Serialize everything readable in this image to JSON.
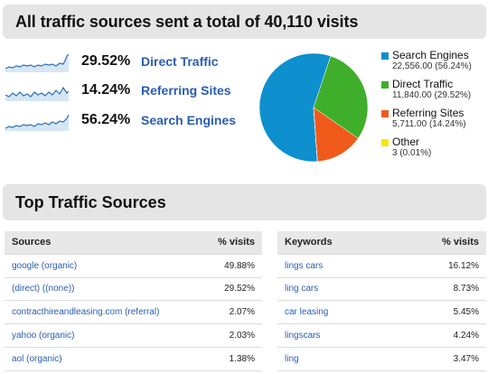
{
  "header": {
    "title": "All traffic sources sent a total of 40,110 visits"
  },
  "sources": [
    {
      "pct": "29.52%",
      "name": "Direct Traffic"
    },
    {
      "pct": "14.24%",
      "name": "Referring Sites"
    },
    {
      "pct": "56.24%",
      "name": "Search Engines"
    }
  ],
  "chart_data": {
    "type": "pie",
    "slices": [
      {
        "name": "Search Engines",
        "value": 22556.0,
        "percent": 56.24,
        "color": "#0e8fce"
      },
      {
        "name": "Direct Traffic",
        "value": 11840.0,
        "percent": 29.52,
        "color": "#3fae2a"
      },
      {
        "name": "Referring Sites",
        "value": 5711.0,
        "percent": 14.24,
        "color": "#f05a1a"
      },
      {
        "name": "Other",
        "value": 3,
        "percent": 0.01,
        "color": "#f4e60a"
      }
    ]
  },
  "legend": [
    {
      "name": "Search Engines",
      "value": "22,556.00 (56.24%)",
      "color": "#0e8fce"
    },
    {
      "name": "Direct Traffic",
      "value": "11,840.00 (29.52%)",
      "color": "#3fae2a"
    },
    {
      "name": "Referring Sites",
      "value": "5,711.00 (14.24%)",
      "color": "#f05a1a"
    },
    {
      "name": "Other",
      "value": "3 (0.01%)",
      "color": "#f4e60a"
    }
  ],
  "top_sources": {
    "title": "Top Traffic Sources",
    "sources_table": {
      "col1": "Sources",
      "col2": "% visits",
      "rows": [
        {
          "name": "google (organic)",
          "pct": "49.88%"
        },
        {
          "name": "(direct) ((none))",
          "pct": "29.52%"
        },
        {
          "name": "contracthireandleasing.com (referral)",
          "pct": "2.07%"
        },
        {
          "name": "yahoo (organic)",
          "pct": "2.03%"
        },
        {
          "name": "aol (organic)",
          "pct": "1.38%"
        }
      ]
    },
    "keywords_table": {
      "col1": "Keywords",
      "col2": "% visits",
      "rows": [
        {
          "name": "lings cars",
          "pct": "16.12%"
        },
        {
          "name": "ling cars",
          "pct": "8.73%"
        },
        {
          "name": "car leasing",
          "pct": "5.45%"
        },
        {
          "name": "lingscars",
          "pct": "4.24%"
        },
        {
          "name": "ling",
          "pct": "3.47%"
        }
      ]
    }
  }
}
